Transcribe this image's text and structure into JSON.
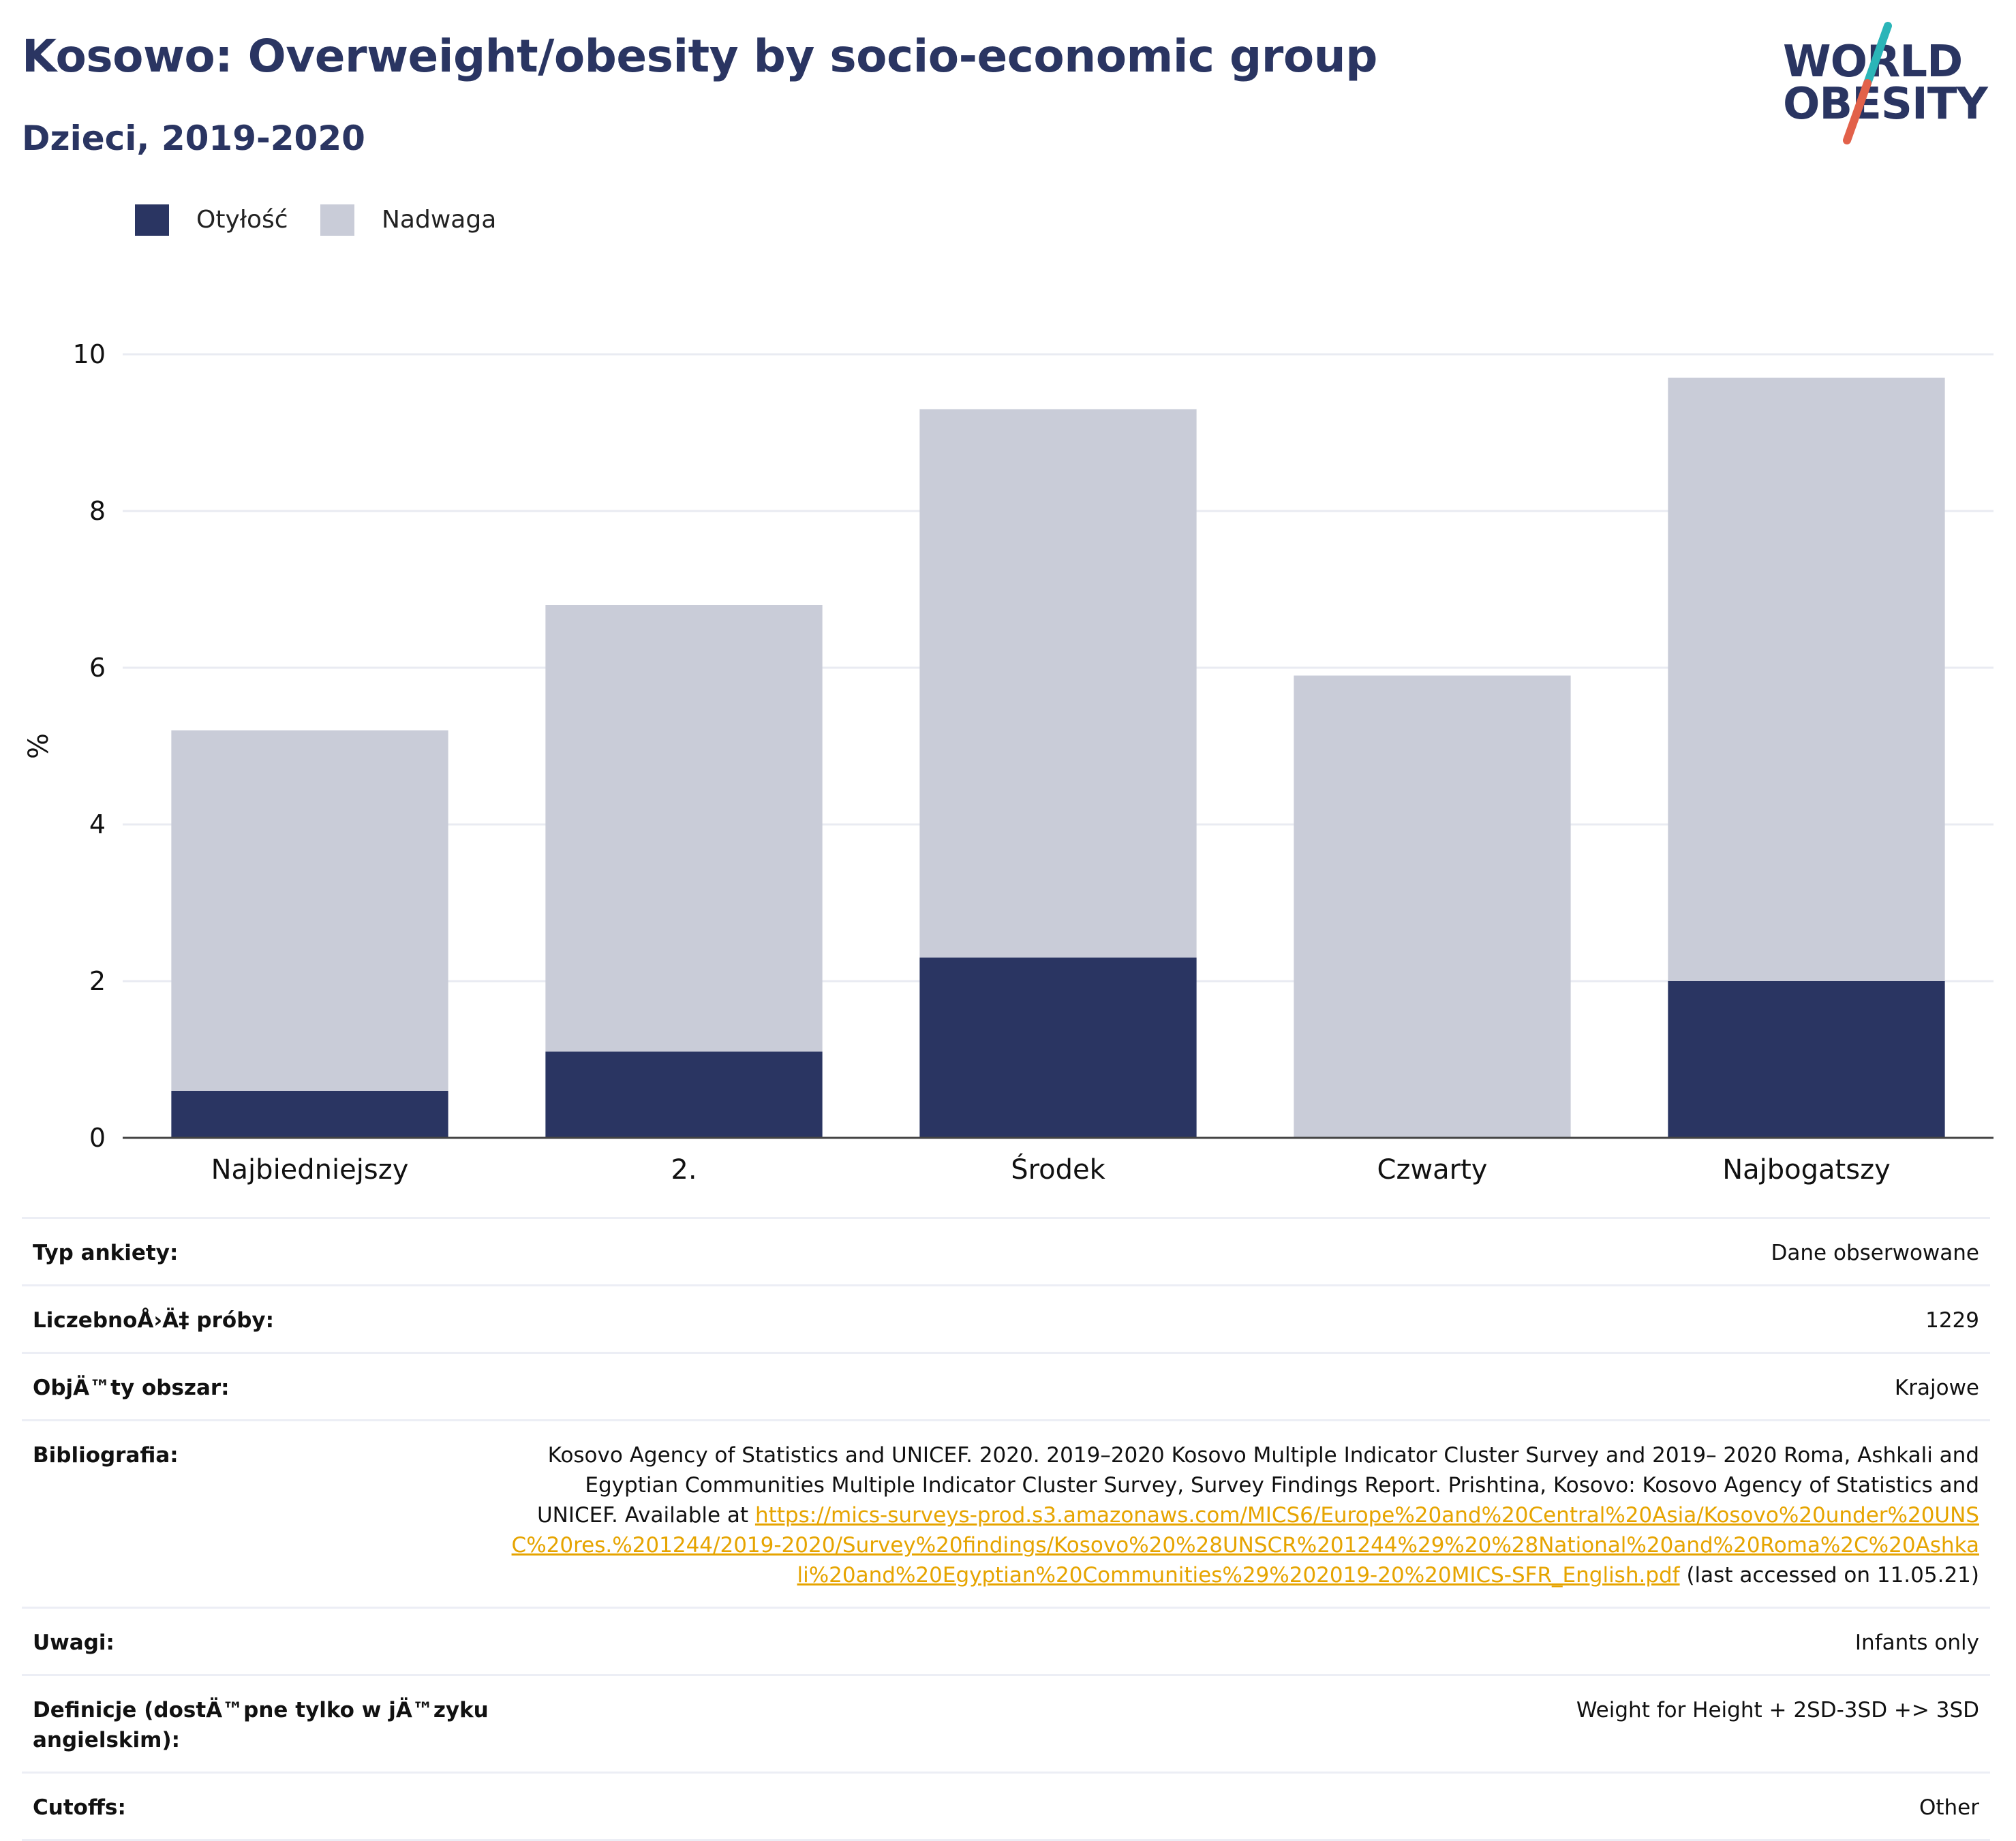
{
  "header": {
    "title": "Kosowo: Overweight/obesity by socio-economic group",
    "subtitle": "Dzieci, 2019-2020"
  },
  "logo": {
    "line1": "WORLD",
    "line2": "OBESITY",
    "colors": {
      "text": "#2a3562",
      "slash_top": "#2bb5b8",
      "slash_bottom": "#e2614a"
    }
  },
  "chart_data": {
    "type": "bar",
    "stacked": true,
    "categories": [
      "Najbiedniejszy",
      "2.",
      "Środek",
      "Czwarty",
      "Najbogatszy"
    ],
    "series": [
      {
        "name": "Otyłość",
        "color": "#2a3562",
        "values": [
          0.6,
          1.1,
          2.3,
          0.0,
          2.0
        ]
      },
      {
        "name": "Nadwaga",
        "color": "#c9ccd8",
        "values": [
          4.6,
          5.7,
          7.0,
          5.9,
          7.7
        ]
      }
    ],
    "ylabel": "%",
    "xlabel": "",
    "ylim": [
      0,
      10
    ],
    "yticks": [
      0,
      2,
      4,
      6,
      8,
      10
    ],
    "grid": true,
    "legend_position": "top-left"
  },
  "info": {
    "rows": [
      {
        "label": "Typ ankiety:",
        "value": "Dane obserwowane"
      },
      {
        "label": "LiczebnoÅ›Ä‡ próby:",
        "value": "1229"
      },
      {
        "label": "ObjÄ™ty obszar:",
        "value": "Krajowe"
      },
      {
        "label": "Bibliografia:",
        "value": "Kosovo Agency of Statistics and UNICEF. 2020. 2019–2020 Kosovo Multiple Indicator Cluster Survey and 2019– 2020 Roma, Ashkali and Egyptian Communities Multiple Indicator Cluster Survey, Survey Findings Report. Prishtina, Kosovo: Kosovo Agency of Statistics and UNICEF. Available at ",
        "link": "https://mics-surveys-prod.s3.amazonaws.com/MICS6/Europe%20and%20Central%20Asia/Kosovo%20under%20UNSC%20res.%201244/2019-2020/Survey%20findings/Kosovo%20%28UNSCR%201244%29%20%28National%20and%20Roma%2C%20Ashkali%20and%20Egyptian%20Communities%29%202019-20%20MICS-SFR_English.pdf",
        "suffix": " (last accessed on 11.05.21)"
      },
      {
        "label": "Uwagi:",
        "value": "Infants only"
      },
      {
        "label": "Definicje (dostÄ™pne tylko w jÄ™zyku angielskim):",
        "value": "Weight for Height + 2SD-3SD +> 3SD"
      },
      {
        "label": "Cutoffs:",
        "value": "Other"
      }
    ]
  }
}
